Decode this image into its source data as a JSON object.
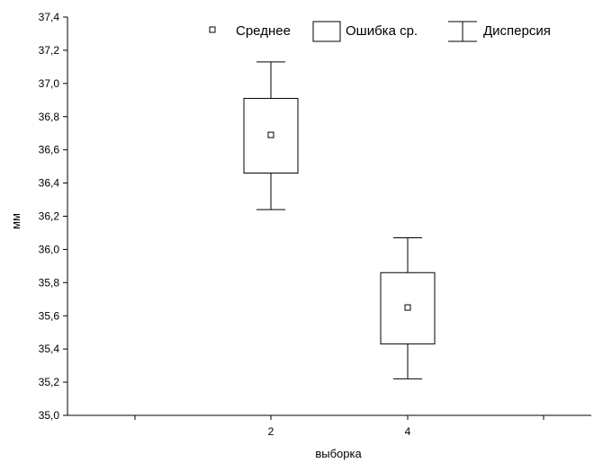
{
  "chart_data": {
    "type": "boxplot",
    "xlabel": "выборка",
    "ylabel": "мм",
    "ylim": [
      35.0,
      37.4
    ],
    "y_ticks": [
      "35,0",
      "35,2",
      "35,4",
      "35,6",
      "35,8",
      "36,0",
      "36,2",
      "36,4",
      "36,6",
      "36,8",
      "37,0",
      "37,2",
      "37,4"
    ],
    "x_ticks": [
      "2",
      "4"
    ],
    "legend": {
      "position": "top-right",
      "entries": [
        "Среднее",
        "Ошибка ср.",
        "Дисперсия"
      ]
    },
    "groups": [
      {
        "category": "2",
        "mean": 36.69,
        "se_low": 36.46,
        "se_high": 36.91,
        "sd_low": 36.24,
        "sd_high": 37.13
      },
      {
        "category": "4",
        "mean": 35.65,
        "se_low": 35.43,
        "se_high": 35.86,
        "sd_low": 35.22,
        "sd_high": 36.07
      }
    ],
    "grid": false
  }
}
